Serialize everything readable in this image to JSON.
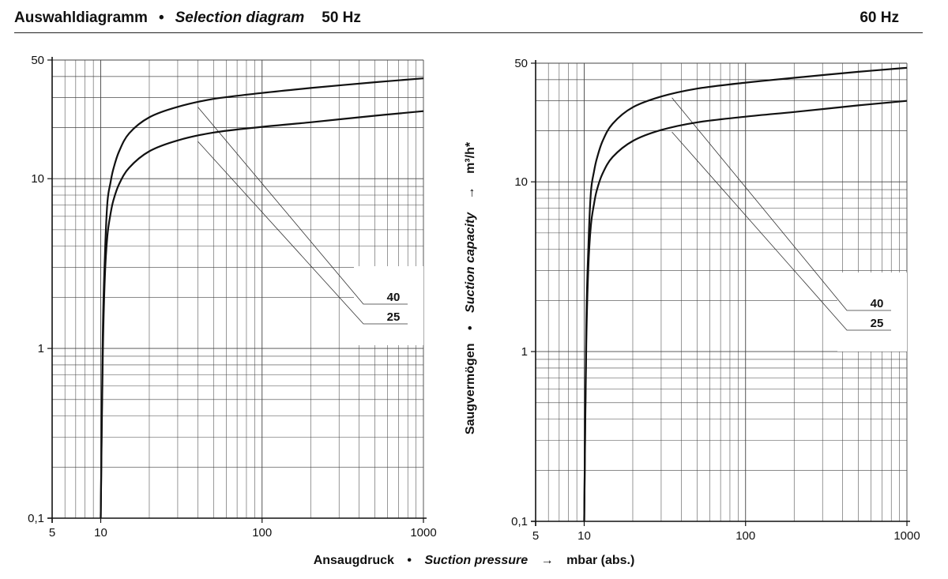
{
  "header": {
    "title_de": "Auswahldiagramm",
    "bullet": "•",
    "title_en": "Selection diagram",
    "freq_left": "50 Hz",
    "freq_right": "60 Hz"
  },
  "y_axis_label": {
    "de": "Saugvermögen",
    "bullet": "•",
    "en": "Suction capacity",
    "arrow": "→",
    "unit": "m³/h*"
  },
  "x_axis_label": {
    "de": "Ansaugdruck",
    "bullet": "•",
    "en": "Suction pressure",
    "arrow": "→",
    "unit": "mbar (abs.)"
  },
  "chart_data": [
    {
      "type": "line",
      "frequency": "50 Hz",
      "x_scale": "log",
      "y_scale": "log",
      "xlim": [
        5,
        1000
      ],
      "ylim": [
        0.1,
        50
      ],
      "x_ticks": [
        5,
        10,
        100,
        1000
      ],
      "x_tick_labels": [
        "5",
        "10",
        "100",
        "1000"
      ],
      "y_ticks": [
        0.1,
        1,
        10,
        50
      ],
      "y_tick_labels": [
        "0,1",
        "1",
        "10",
        "50"
      ],
      "grid": true,
      "series": [
        {
          "name": "40",
          "x": [
            10,
            10.3,
            10.6,
            11,
            11.5,
            12,
            13,
            15,
            20,
            30,
            50,
            100,
            200,
            500,
            1000
          ],
          "y": [
            0.1,
            1.2,
            3.4,
            7.2,
            9.5,
            11.5,
            14.5,
            18.5,
            23,
            26.5,
            29.5,
            32,
            34.2,
            37,
            39
          ]
        },
        {
          "name": "25",
          "x": [
            10,
            10.3,
            10.6,
            11,
            11.5,
            12,
            13,
            15,
            20,
            30,
            50,
            100,
            200,
            500,
            1000
          ],
          "y": [
            0.1,
            0.9,
            2.6,
            4.6,
            6.2,
            7.5,
            9.3,
            11.6,
            14.5,
            16.8,
            18.7,
            20.2,
            21.5,
            23.5,
            25
          ]
        }
      ]
    },
    {
      "type": "line",
      "frequency": "60 Hz",
      "x_scale": "log",
      "y_scale": "log",
      "xlim": [
        5,
        1000
      ],
      "ylim": [
        0.1,
        50
      ],
      "x_ticks": [
        5,
        10,
        100,
        1000
      ],
      "x_tick_labels": [
        "5",
        "10",
        "100",
        "1000"
      ],
      "y_ticks": [
        0.1,
        1,
        10,
        50
      ],
      "y_tick_labels": [
        "0,1",
        "1",
        "10",
        "50"
      ],
      "grid": true,
      "series": [
        {
          "name": "40",
          "x": [
            10,
            10.3,
            10.6,
            11,
            11.5,
            12,
            13,
            15,
            20,
            30,
            50,
            100,
            200,
            500,
            1000
          ],
          "y": [
            0.1,
            1.4,
            4.0,
            8.6,
            11.5,
            13.8,
            17.4,
            22,
            27.5,
            31.8,
            35.4,
            38.4,
            41,
            44.5,
            47
          ]
        },
        {
          "name": "25",
          "x": [
            10,
            10.3,
            10.6,
            11,
            11.5,
            12,
            13,
            15,
            20,
            30,
            50,
            100,
            200,
            500,
            1000
          ],
          "y": [
            0.1,
            1.1,
            3.1,
            5.5,
            7.4,
            9.0,
            11.2,
            14,
            17.4,
            20.2,
            22.4,
            24.2,
            25.8,
            28.2,
            30
          ]
        }
      ]
    }
  ]
}
